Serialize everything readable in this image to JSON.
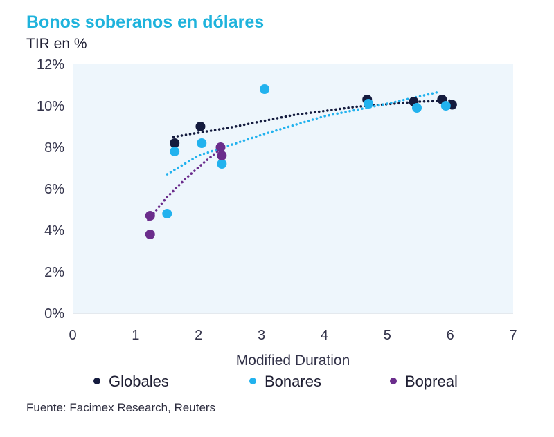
{
  "title": "Bonos soberanos en dólares",
  "subtitle": "TIR en %",
  "source": "Fuente: Facimex Research, Reuters",
  "colors": {
    "globales": "#141b3e",
    "bonares": "#22b2ee",
    "bopreal": "#6b2d8c",
    "plot_bg": "#eef6fc"
  },
  "chart_data": {
    "type": "scatter",
    "title": "Bonos soberanos en dólares",
    "xlabel": "Modified Duration",
    "ylabel": "TIR en %",
    "xlim": [
      0,
      7
    ],
    "ylim": [
      0,
      12
    ],
    "xticks": [
      "0",
      "1",
      "2",
      "3",
      "4",
      "5",
      "6",
      "7"
    ],
    "yticks": [
      "0%",
      "2%",
      "4%",
      "6%",
      "8%",
      "10%",
      "12%"
    ],
    "series": [
      {
        "name": "Globales",
        "color": "#141b3e",
        "points": [
          [
            1.62,
            8.2
          ],
          [
            2.03,
            9.0
          ],
          [
            4.68,
            10.3
          ],
          [
            5.42,
            10.2
          ],
          [
            5.87,
            10.3
          ],
          [
            6.03,
            10.05
          ]
        ],
        "trend": [
          [
            1.6,
            8.5
          ],
          [
            2.5,
            8.95
          ],
          [
            3.5,
            9.55
          ],
          [
            4.5,
            9.95
          ],
          [
            5.5,
            10.2
          ],
          [
            6.0,
            10.25
          ]
        ]
      },
      {
        "name": "Bonares",
        "color": "#22b2ee",
        "points": [
          [
            1.62,
            7.8
          ],
          [
            2.05,
            8.2
          ],
          [
            3.05,
            10.8
          ],
          [
            2.37,
            7.2
          ],
          [
            1.5,
            4.8
          ],
          [
            4.7,
            10.1
          ],
          [
            5.47,
            9.9
          ],
          [
            5.93,
            10.0
          ]
        ],
        "trend": [
          [
            1.5,
            6.7
          ],
          [
            2.0,
            7.6
          ],
          [
            3.0,
            8.6
          ],
          [
            4.0,
            9.5
          ],
          [
            5.0,
            10.1
          ],
          [
            5.8,
            10.65
          ]
        ]
      },
      {
        "name": "Bopreal",
        "color": "#6b2d8c",
        "points": [
          [
            1.23,
            4.7
          ],
          [
            1.23,
            3.8
          ],
          [
            2.35,
            8.0
          ],
          [
            2.37,
            7.6
          ]
        ],
        "trend": [
          [
            1.2,
            4.5
          ],
          [
            1.5,
            5.6
          ],
          [
            1.8,
            6.5
          ],
          [
            2.1,
            7.3
          ],
          [
            2.4,
            8.05
          ]
        ]
      }
    ],
    "legend_position": "bottom"
  }
}
